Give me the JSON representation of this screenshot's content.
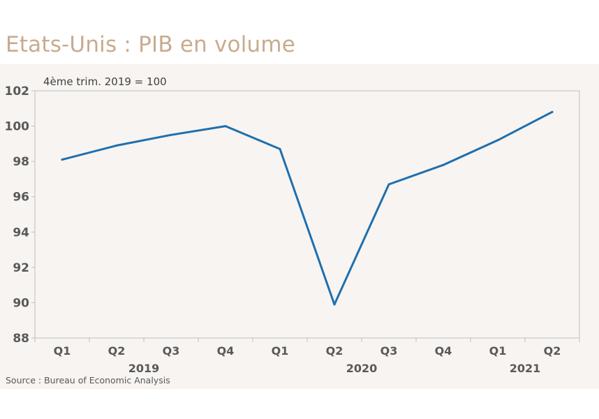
{
  "title": "Etats-Unis : PIB en volume",
  "source": "Source : Bureau of Economic Analysis",
  "colors": {
    "title": "#c8ab8e",
    "panel_background": "#f7f4f1",
    "line": "#1f6fae",
    "axis": "#bfbfbf"
  },
  "chart_data": {
    "type": "line",
    "title": "Etats-Unis : PIB en volume",
    "ylabel": "4ème trim. 2019 = 100",
    "categories": [
      "Q1",
      "Q2",
      "Q3",
      "Q4",
      "Q1",
      "Q2",
      "Q3",
      "Q4",
      "Q1",
      "Q2"
    ],
    "year_labels": [
      {
        "label": "2019",
        "from": 0,
        "to": 3
      },
      {
        "label": "2020",
        "from": 4,
        "to": 7
      },
      {
        "label": "2021",
        "from": 8,
        "to": 9
      }
    ],
    "series": [
      {
        "values": [
          98.1,
          98.9,
          99.5,
          100.0,
          98.7,
          89.9,
          96.7,
          97.8,
          99.2,
          100.8
        ]
      }
    ],
    "ylim": [
      88,
      102
    ],
    "yticks": [
      88,
      90,
      92,
      94,
      96,
      98,
      100,
      102
    ],
    "grid": false,
    "legend": "none"
  }
}
